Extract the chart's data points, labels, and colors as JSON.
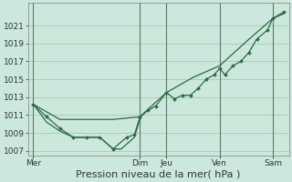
{
  "background_color": "#cce8dc",
  "grid_color": "#a8c8b8",
  "line_color": "#2d6a3f",
  "title": "Pression niveau de la mer( hPa )",
  "ylim": [
    1006.5,
    1023.5
  ],
  "yticks": [
    1007,
    1009,
    1011,
    1013,
    1015,
    1017,
    1019,
    1021
  ],
  "x_day_labels": [
    "Mer",
    "Dim",
    "Jeu",
    "Ven",
    "Sam"
  ],
  "x_day_positions": [
    0,
    4,
    5,
    7,
    9
  ],
  "vline_positions": [
    0,
    4,
    5,
    7,
    9
  ],
  "line_smooth_x": [
    0,
    1,
    2,
    3,
    4,
    5,
    6,
    7,
    8,
    9,
    9.4
  ],
  "line_smooth_y": [
    1012.2,
    1010.5,
    1010.5,
    1010.5,
    1010.8,
    1013.5,
    1015.2,
    1016.5,
    1019.2,
    1021.8,
    1022.3
  ],
  "line_dotted_x": [
    0,
    0.5,
    1,
    1.5,
    2,
    2.5,
    3,
    3.5,
    3.8,
    4.0,
    4.3,
    4.6,
    5.0,
    5.3,
    5.6,
    5.9,
    6.2,
    6.5,
    6.8,
    7.0,
    7.2,
    7.5,
    7.8,
    8.1,
    8.4,
    8.8,
    9.0,
    9.4
  ],
  "line_dotted_y": [
    1012.2,
    1010.8,
    1009.5,
    1008.5,
    1008.5,
    1008.5,
    1007.2,
    1008.5,
    1008.8,
    1010.7,
    1011.5,
    1012.0,
    1013.5,
    1012.8,
    1013.2,
    1013.2,
    1014.0,
    1015.0,
    1015.5,
    1016.2,
    1015.5,
    1016.5,
    1017.0,
    1018.0,
    1019.5,
    1020.5,
    1021.8,
    1022.5
  ],
  "line_lower_x": [
    0,
    0.5,
    1,
    1.5,
    2,
    2.5,
    3,
    3.3,
    3.8,
    4.0
  ],
  "line_lower_y": [
    1012.2,
    1010.2,
    1009.2,
    1008.5,
    1008.5,
    1008.5,
    1007.2,
    1007.2,
    1008.5,
    1010.5
  ],
  "day_label_fontsize": 6.5,
  "xlabel_fontsize": 8,
  "ylabel_fontsize": 6.5
}
